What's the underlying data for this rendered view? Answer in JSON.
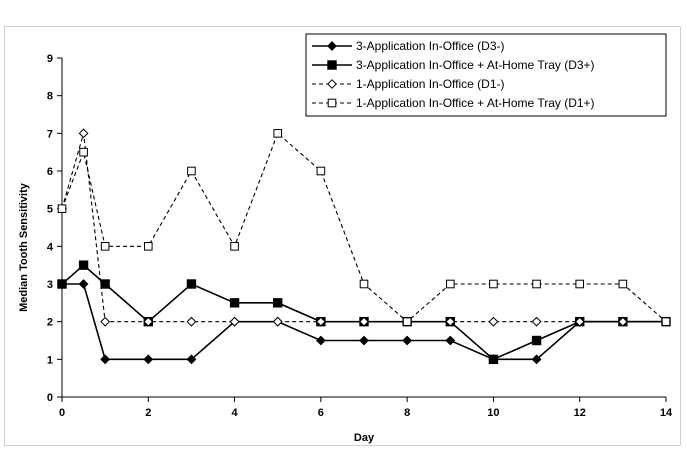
{
  "chart_data": {
    "type": "line",
    "title": "",
    "xlabel": "Day",
    "ylabel": "Median Tooth Sensitivity",
    "xlim": [
      0,
      14
    ],
    "ylim": [
      0,
      9
    ],
    "xticks": [
      0,
      2,
      4,
      6,
      8,
      10,
      12,
      14
    ],
    "yticks": [
      0,
      1,
      2,
      3,
      4,
      5,
      6,
      7,
      8,
      9
    ],
    "grid": false,
    "legend_position": "top-right",
    "series": [
      {
        "name": "3-Application In-Office (D3-)",
        "line": "solid",
        "marker": "diamond-filled",
        "color": "#000000",
        "points": [
          [
            0,
            3
          ],
          [
            0.5,
            3
          ],
          [
            1,
            1
          ],
          [
            2,
            1
          ],
          [
            3,
            1
          ],
          [
            4,
            2
          ],
          [
            5,
            2
          ],
          [
            6,
            1.5
          ],
          [
            7,
            1.5
          ],
          [
            8,
            1.5
          ],
          [
            9,
            1.5
          ],
          [
            10,
            1
          ],
          [
            11,
            1
          ],
          [
            12,
            2
          ],
          [
            13,
            2
          ],
          [
            14,
            2
          ]
        ]
      },
      {
        "name": "3-Application In-Office + At-Home Tray (D3+)",
        "line": "solid",
        "marker": "square-filled",
        "color": "#000000",
        "points": [
          [
            0,
            3
          ],
          [
            0.5,
            3.5
          ],
          [
            1,
            3
          ],
          [
            2,
            2
          ],
          [
            3,
            3
          ],
          [
            4,
            2.5
          ],
          [
            5,
            2.5
          ],
          [
            6,
            2
          ],
          [
            7,
            2
          ],
          [
            8,
            2
          ],
          [
            9,
            2
          ],
          [
            10,
            1
          ],
          [
            11,
            1.5
          ],
          [
            12,
            2
          ],
          [
            13,
            2
          ],
          [
            14,
            2
          ]
        ]
      },
      {
        "name": "1-Application In-Office (D1-)",
        "line": "dashed",
        "marker": "diamond-open",
        "color": "#000000",
        "points": [
          [
            0,
            5
          ],
          [
            0.5,
            7
          ],
          [
            1,
            2
          ],
          [
            2,
            2
          ],
          [
            3,
            2
          ],
          [
            4,
            2
          ],
          [
            5,
            2
          ],
          [
            6,
            2
          ],
          [
            7,
            2
          ],
          [
            8,
            2
          ],
          [
            9,
            2
          ],
          [
            10,
            2
          ],
          [
            11,
            2
          ],
          [
            12,
            2
          ],
          [
            13,
            2
          ],
          [
            14,
            2
          ]
        ]
      },
      {
        "name": "1-Application In-Office + At-Home Tray (D1+)",
        "line": "dashed",
        "marker": "square-open",
        "color": "#000000",
        "points": [
          [
            0,
            5
          ],
          [
            0.5,
            6.5
          ],
          [
            1,
            4
          ],
          [
            2,
            4
          ],
          [
            3,
            6
          ],
          [
            4,
            4
          ],
          [
            5,
            7
          ],
          [
            6,
            6
          ],
          [
            7,
            3
          ],
          [
            8,
            2
          ],
          [
            9,
            3
          ],
          [
            10,
            3
          ],
          [
            11,
            3
          ],
          [
            12,
            3
          ],
          [
            13,
            3
          ],
          [
            14,
            2
          ]
        ]
      }
    ]
  }
}
